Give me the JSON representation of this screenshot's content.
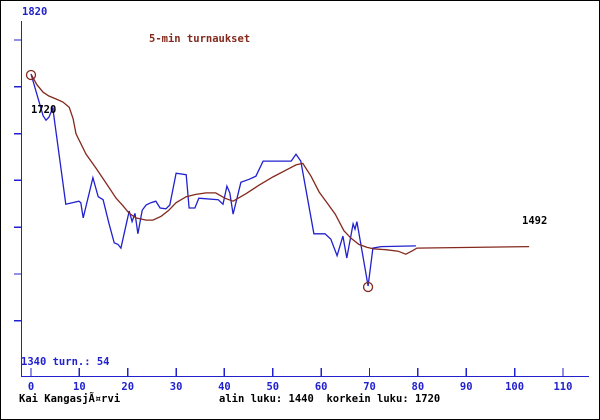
{
  "labels": {
    "title": "5-min turnaukset",
    "y_axis_max": "1820",
    "y_axis_min_and_turns": "1340 turn.: 54",
    "start_value": "1720",
    "end_value": "1492",
    "footer_left": "Kai KangasjÃ¤rvi",
    "footer_right": "alin luku: 1440  korkein luku: 1720"
  },
  "colors": {
    "axis_and_rating_line": "#2121CE",
    "average_line_and_title": "#83291D",
    "plain_text": "#000000",
    "background": "#ffffff"
  },
  "chart_data": {
    "type": "line",
    "title": "5-min turnaukset",
    "xlabel": "",
    "ylabel": "",
    "x_ticks": [
      0,
      10,
      20,
      30,
      40,
      50,
      60,
      70,
      80,
      90,
      100,
      110
    ],
    "x_range": [
      0,
      115
    ],
    "y_range": [
      1340,
      1820
    ],
    "y_axis_top_label": 1820,
    "y_axis_bottom_label": 1340,
    "tournaments_label": "turn.: 54",
    "lowest_value": 1440,
    "highest_value": 1720,
    "final_average_value": 1492,
    "grid": false,
    "legend": "none",
    "series": [
      {
        "name": "rating",
        "color": "#2121CE",
        "points": [
          [
            0,
            1720
          ],
          [
            2.5,
            1665
          ],
          [
            3.1,
            1659
          ],
          [
            3.7,
            1663
          ],
          [
            4.5,
            1675
          ],
          [
            7.2,
            1548
          ],
          [
            9.9,
            1552
          ],
          [
            10.3,
            1550
          ],
          [
            10.8,
            1530
          ],
          [
            12.8,
            1583
          ],
          [
            13.9,
            1558
          ],
          [
            14.9,
            1554
          ],
          [
            16.1,
            1523
          ],
          [
            17.2,
            1497
          ],
          [
            18.0,
            1495
          ],
          [
            18.6,
            1490
          ],
          [
            19.4,
            1513
          ],
          [
            20.3,
            1539
          ],
          [
            20.9,
            1525
          ],
          [
            21.5,
            1536
          ],
          [
            22.1,
            1509
          ],
          [
            23.0,
            1540
          ],
          [
            23.8,
            1547
          ],
          [
            24.8,
            1550
          ],
          [
            25.8,
            1552
          ],
          [
            26.7,
            1543
          ],
          [
            27.9,
            1542
          ],
          [
            28.7,
            1547
          ],
          [
            30.0,
            1589
          ],
          [
            32.1,
            1587
          ],
          [
            32.7,
            1543
          ],
          [
            33.9,
            1543
          ],
          [
            34.7,
            1556
          ],
          [
            38.7,
            1554
          ],
          [
            39.7,
            1548
          ],
          [
            40.5,
            1572
          ],
          [
            41.1,
            1563
          ],
          [
            41.8,
            1535
          ],
          [
            43.4,
            1577
          ],
          [
            45.1,
            1581
          ],
          [
            46.5,
            1585
          ],
          [
            48.0,
            1605
          ],
          [
            53.8,
            1605
          ],
          [
            54.8,
            1614
          ],
          [
            55.8,
            1605
          ],
          [
            58.5,
            1509
          ],
          [
            60.8,
            1509
          ],
          [
            62.0,
            1502
          ],
          [
            63.3,
            1480
          ],
          [
            64.5,
            1506
          ],
          [
            65.3,
            1477
          ],
          [
            66.6,
            1522
          ],
          [
            67.0,
            1515
          ],
          [
            67.4,
            1525
          ],
          [
            69.7,
            1440
          ],
          [
            70.7,
            1490
          ],
          [
            72.4,
            1492
          ],
          [
            79.6,
            1493
          ]
        ]
      },
      {
        "name": "average",
        "color": "#83291D",
        "points": [
          [
            0,
            1720
          ],
          [
            1.2,
            1706
          ],
          [
            2.5,
            1696
          ],
          [
            3.7,
            1691
          ],
          [
            5.2,
            1687
          ],
          [
            6.6,
            1683
          ],
          [
            7.9,
            1676
          ],
          [
            8.7,
            1661
          ],
          [
            9.3,
            1641
          ],
          [
            11.4,
            1614
          ],
          [
            13.4,
            1596
          ],
          [
            15.5,
            1576
          ],
          [
            17.6,
            1556
          ],
          [
            19.0,
            1546
          ],
          [
            20.3,
            1536
          ],
          [
            21.7,
            1530
          ],
          [
            23.8,
            1527
          ],
          [
            25.2,
            1527
          ],
          [
            26.9,
            1532
          ],
          [
            28.5,
            1540
          ],
          [
            30.0,
            1550
          ],
          [
            32.1,
            1558
          ],
          [
            34.1,
            1561
          ],
          [
            36.2,
            1563
          ],
          [
            38.2,
            1563
          ],
          [
            40.1,
            1556
          ],
          [
            41.8,
            1552
          ],
          [
            44.5,
            1562
          ],
          [
            47.1,
            1573
          ],
          [
            50.0,
            1584
          ],
          [
            52.7,
            1593
          ],
          [
            54.8,
            1600
          ],
          [
            56.2,
            1602
          ],
          [
            57.9,
            1585
          ],
          [
            59.6,
            1564
          ],
          [
            61.2,
            1550
          ],
          [
            62.9,
            1535
          ],
          [
            64.7,
            1513
          ],
          [
            66.2,
            1503
          ],
          [
            67.8,
            1495
          ],
          [
            69.5,
            1491
          ],
          [
            70.9,
            1489
          ],
          [
            73.4,
            1488
          ],
          [
            75.9,
            1486
          ],
          [
            77.5,
            1482
          ],
          [
            79.0,
            1487
          ],
          [
            79.8,
            1490
          ],
          [
            103.0,
            1492
          ]
        ]
      }
    ],
    "markers": [
      {
        "name": "highest-point-circle",
        "x": 0,
        "y": 1720
      },
      {
        "name": "lowest-point-circle",
        "x": 69.7,
        "y": 1440
      }
    ]
  }
}
